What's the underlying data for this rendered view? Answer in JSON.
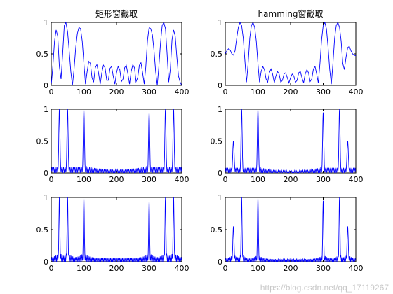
{
  "watermark": "https://blog.csdn.net/qq_17119267",
  "style": {
    "line_color": "#0000ff",
    "axis_color": "#000000",
    "background": "#ffffff"
  },
  "chart_data": [
    {
      "type": "line",
      "title": "矩形窗截取",
      "xlim": [
        0,
        400
      ],
      "ylim": [
        0,
        1
      ],
      "xticks": [
        0,
        100,
        200,
        300,
        400
      ],
      "yticks": [
        0,
        0.5,
        1
      ],
      "series": [
        {
          "x": [
            0,
            5,
            10,
            15,
            20,
            25,
            30,
            35,
            40,
            45,
            50,
            55,
            60,
            65,
            70,
            75,
            80,
            85,
            90,
            95,
            100,
            105,
            110,
            115,
            120,
            125,
            130,
            135,
            140,
            145,
            150,
            155,
            160,
            165,
            170,
            175,
            180,
            185,
            190,
            195,
            200,
            205,
            210,
            215,
            220,
            225,
            230,
            235,
            240,
            245,
            250,
            255,
            260,
            265,
            270,
            275,
            280,
            285,
            290,
            295,
            300,
            305,
            310,
            315,
            320,
            325,
            330,
            335,
            340,
            345,
            350,
            355,
            360,
            365,
            370,
            375,
            380,
            385,
            390,
            395,
            400
          ],
          "y": [
            0.0,
            0.3,
            0.7,
            0.88,
            0.78,
            0.3,
            0.1,
            0.5,
            0.95,
            1.0,
            0.85,
            0.55,
            0.22,
            0.0,
            0.25,
            0.6,
            0.82,
            0.92,
            0.9,
            0.7,
            0.35,
            0.02,
            0.22,
            0.38,
            0.35,
            0.12,
            0.05,
            0.28,
            0.33,
            0.2,
            0.02,
            0.2,
            0.32,
            0.28,
            0.08,
            0.08,
            0.27,
            0.3,
            0.15,
            0.02,
            0.2,
            0.3,
            0.25,
            0.06,
            0.1,
            0.28,
            0.32,
            0.18,
            0.02,
            0.22,
            0.33,
            0.28,
            0.06,
            0.12,
            0.32,
            0.36,
            0.2,
            0.02,
            0.3,
            0.72,
            0.92,
            0.9,
            0.8,
            0.55,
            0.22,
            0.0,
            0.3,
            0.68,
            0.95,
            1.0,
            0.9,
            0.5,
            0.05,
            0.25,
            0.72,
            0.88,
            0.78,
            0.45,
            0.15,
            0.05,
            0.0
          ]
        }
      ]
    },
    {
      "type": "line",
      "title": "hamming窗截取",
      "xlim": [
        0,
        400
      ],
      "ylim": [
        0,
        1
      ],
      "xticks": [
        0,
        100,
        200,
        300,
        400
      ],
      "yticks": [
        0,
        0.5,
        1
      ],
      "series": [
        {
          "x": [
            0,
            5,
            10,
            15,
            20,
            25,
            30,
            35,
            40,
            45,
            50,
            55,
            60,
            65,
            70,
            75,
            80,
            85,
            90,
            95,
            100,
            105,
            110,
            115,
            120,
            125,
            130,
            135,
            140,
            145,
            150,
            155,
            160,
            165,
            170,
            175,
            180,
            185,
            190,
            195,
            200,
            205,
            210,
            215,
            220,
            225,
            230,
            235,
            240,
            245,
            250,
            255,
            260,
            265,
            270,
            275,
            280,
            285,
            290,
            295,
            300,
            305,
            310,
            315,
            320,
            325,
            330,
            335,
            340,
            345,
            350,
            355,
            360,
            365,
            370,
            375,
            380,
            385,
            390,
            395,
            400
          ],
          "y": [
            0.5,
            0.55,
            0.58,
            0.56,
            0.5,
            0.48,
            0.55,
            0.75,
            0.92,
            1.0,
            0.95,
            0.75,
            0.4,
            0.05,
            0.35,
            0.75,
            0.95,
            1.0,
            0.92,
            0.7,
            0.35,
            0.05,
            0.22,
            0.3,
            0.25,
            0.1,
            0.05,
            0.2,
            0.26,
            0.18,
            0.04,
            0.15,
            0.22,
            0.18,
            0.05,
            0.08,
            0.18,
            0.2,
            0.12,
            0.04,
            0.12,
            0.18,
            0.15,
            0.05,
            0.08,
            0.2,
            0.22,
            0.12,
            0.04,
            0.18,
            0.25,
            0.2,
            0.06,
            0.1,
            0.26,
            0.3,
            0.18,
            0.04,
            0.35,
            0.72,
            0.95,
            1.0,
            0.9,
            0.6,
            0.25,
            0.02,
            0.35,
            0.75,
            0.95,
            1.0,
            0.92,
            0.7,
            0.35,
            0.25,
            0.45,
            0.6,
            0.62,
            0.55,
            0.5,
            0.48,
            0.47
          ]
        }
      ]
    },
    {
      "type": "line",
      "title": "",
      "xlim": [
        0,
        400
      ],
      "ylim": [
        0,
        1
      ],
      "xticks": [
        0,
        100,
        200,
        300,
        400
      ],
      "yticks": [
        0,
        0.5,
        1
      ],
      "generator": {
        "style": "dense",
        "peaks": [
          [
            25,
            1.0,
            2.5
          ],
          [
            50,
            1.0,
            2.5
          ],
          [
            100,
            1.0,
            2.5
          ],
          [
            300,
            0.95,
            2.5
          ],
          [
            350,
            1.0,
            2.5
          ],
          [
            375,
            1.0,
            2.5
          ]
        ],
        "ripple_period": 5,
        "ripple_edge": 0.12,
        "ripple_mid": 0.05,
        "bowl": true
      }
    },
    {
      "type": "line",
      "title": "",
      "xlim": [
        0,
        400
      ],
      "ylim": [
        0,
        1
      ],
      "xticks": [
        0,
        100,
        200,
        300,
        400
      ],
      "yticks": [
        0,
        0.5,
        1
      ],
      "generator": {
        "style": "dense",
        "peaks": [
          [
            25,
            0.5,
            3
          ],
          [
            50,
            1.0,
            2.5
          ],
          [
            100,
            1.0,
            2.5
          ],
          [
            300,
            0.95,
            2.5
          ],
          [
            350,
            1.0,
            2.5
          ],
          [
            375,
            0.5,
            3
          ]
        ],
        "ripple_period": 5,
        "ripple_edge": 0.1,
        "ripple_mid": 0.03,
        "bowl": true
      }
    },
    {
      "type": "line",
      "title": "",
      "xlim": [
        0,
        400
      ],
      "ylim": [
        0,
        1
      ],
      "xticks": [
        0,
        100,
        200,
        300,
        400
      ],
      "yticks": [
        0,
        0.5,
        1
      ],
      "generator": {
        "style": "dense",
        "peaks": [
          [
            25,
            1.0,
            2
          ],
          [
            50,
            1.0,
            2
          ],
          [
            100,
            1.0,
            2
          ],
          [
            300,
            0.95,
            2
          ],
          [
            350,
            1.0,
            2
          ],
          [
            375,
            1.0,
            2
          ]
        ],
        "ripple_period": 4,
        "ripple_edge": 0.15,
        "ripple_mid": 0.06,
        "bowl": false
      }
    },
    {
      "type": "line",
      "title": "",
      "xlim": [
        0,
        400
      ],
      "ylim": [
        0,
        1
      ],
      "xticks": [
        0,
        100,
        200,
        300,
        400
      ],
      "yticks": [
        0,
        0.5,
        1
      ],
      "generator": {
        "style": "dense",
        "peaks": [
          [
            25,
            0.55,
            2.5
          ],
          [
            50,
            1.0,
            2
          ],
          [
            100,
            1.0,
            2
          ],
          [
            300,
            0.95,
            2
          ],
          [
            350,
            1.0,
            2
          ],
          [
            375,
            0.55,
            2.5
          ]
        ],
        "ripple_period": 4,
        "ripple_edge": 0.12,
        "ripple_mid": 0.04,
        "bowl": false
      }
    }
  ]
}
